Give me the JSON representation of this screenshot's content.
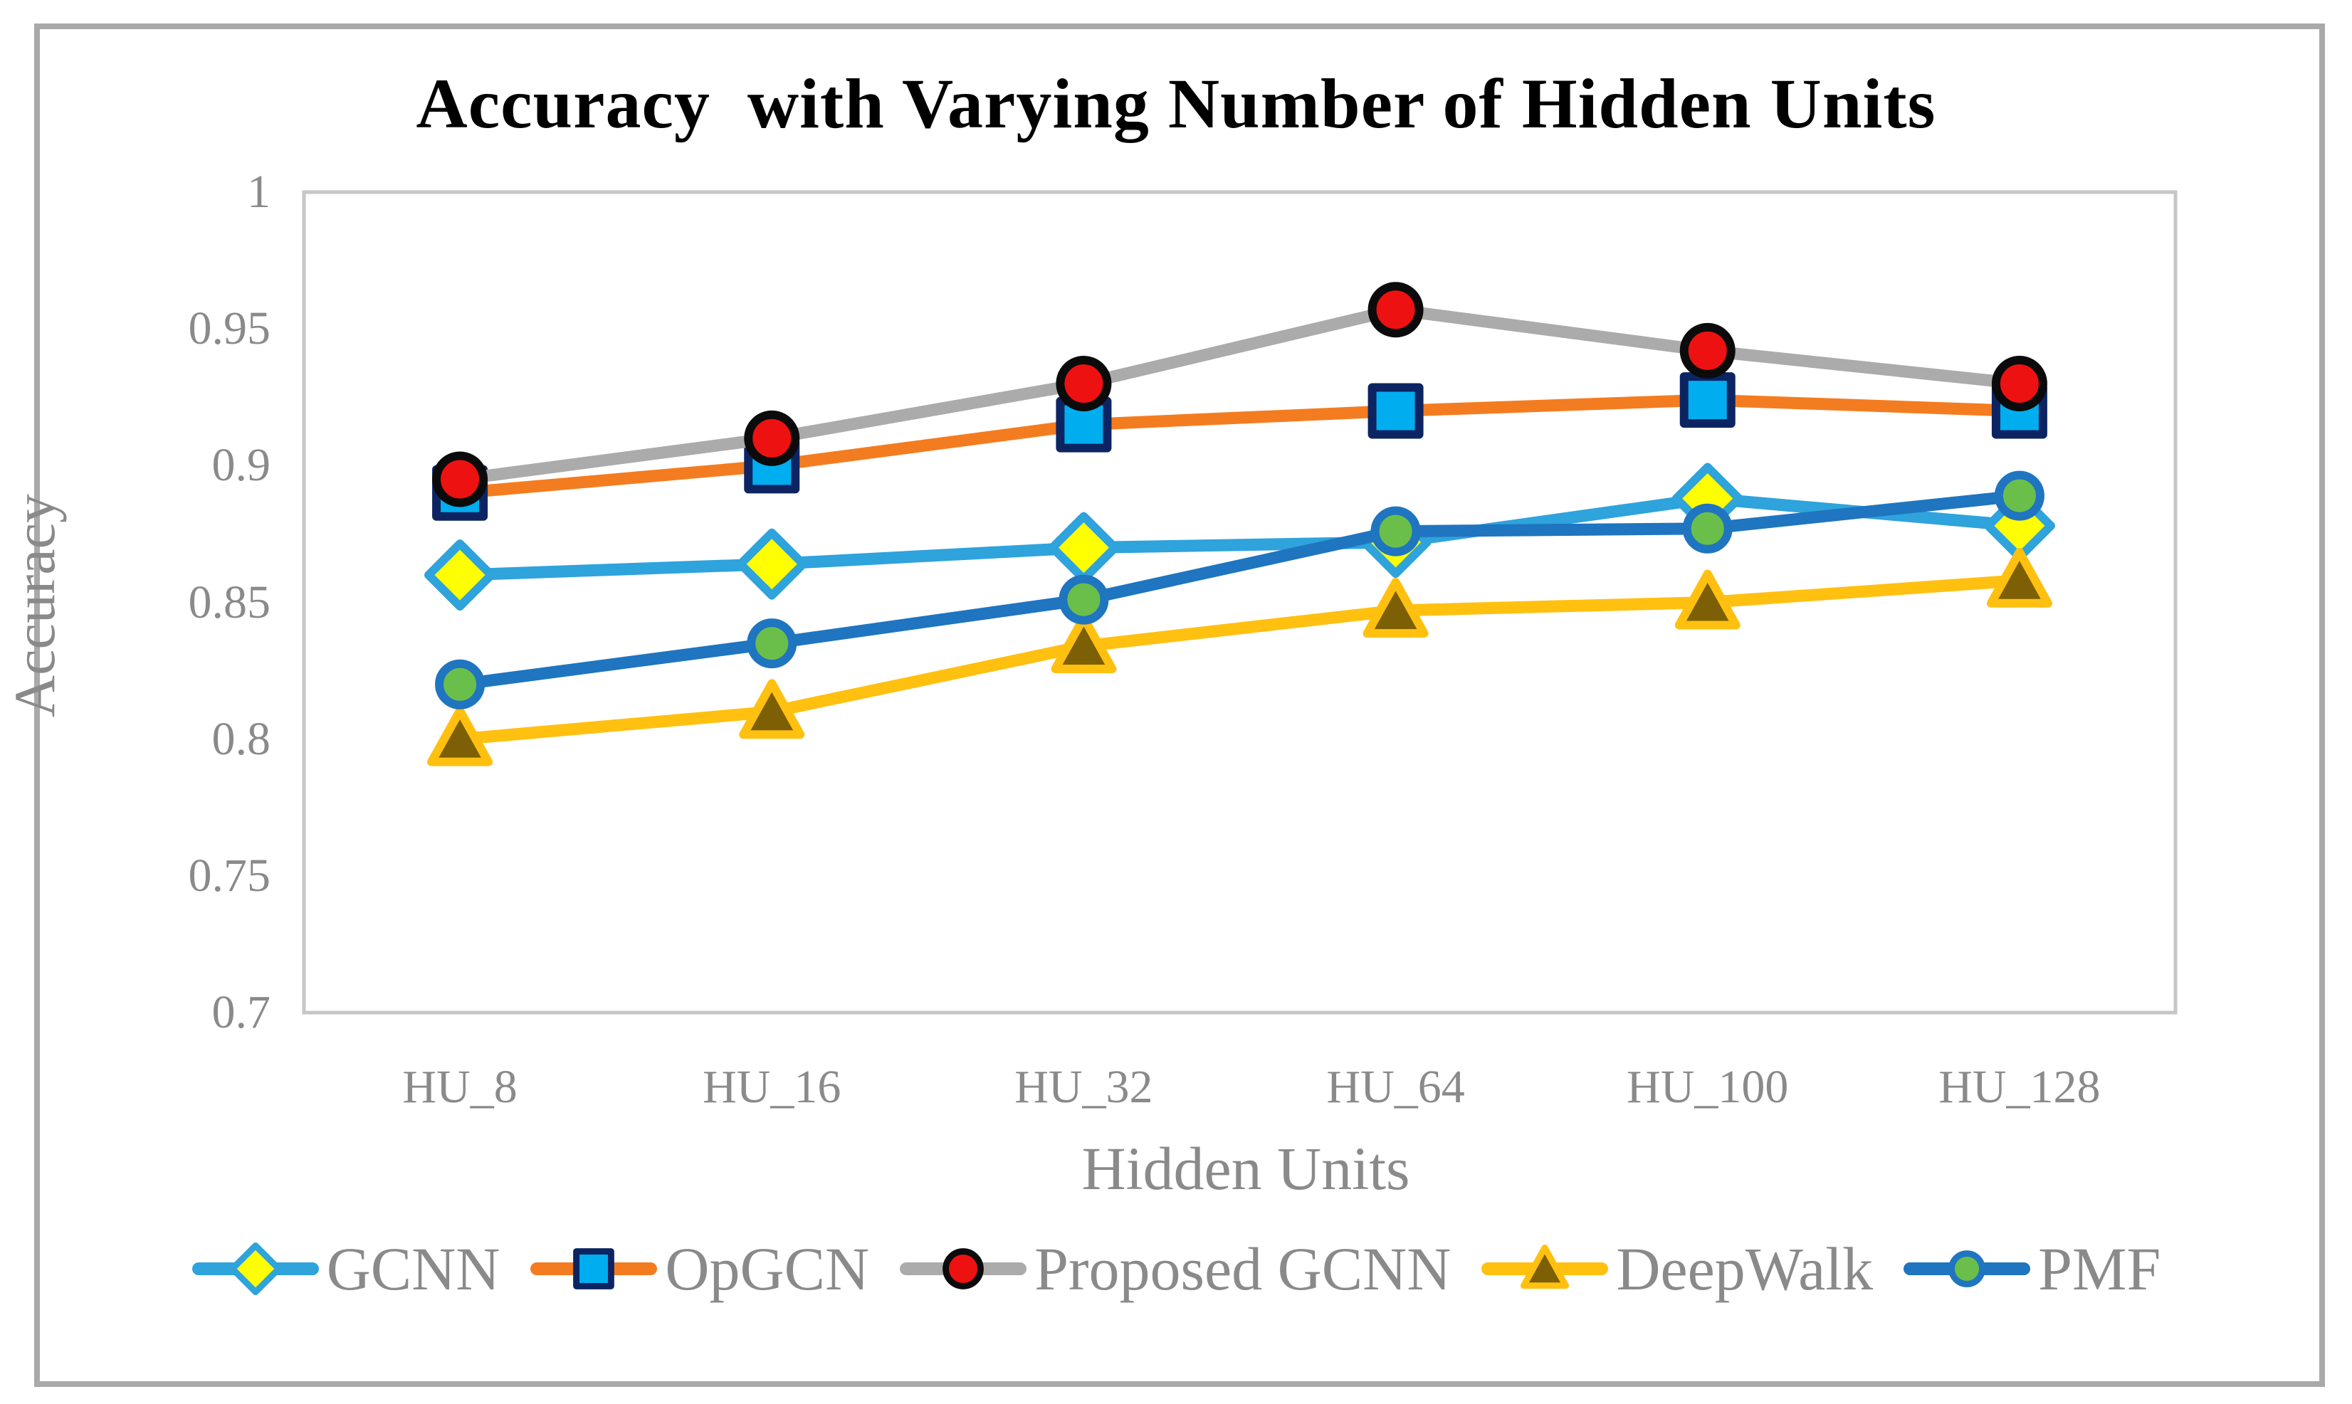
{
  "figure": {
    "title": "Accuracy  with Varying Number of Hidden Units"
  },
  "chart_data": {
    "type": "line",
    "title": "Accuracy  with Varying Number of Hidden Units",
    "xlabel": "Hidden Units",
    "ylabel": "Accuracy",
    "categories": [
      "HU_8",
      "HU_16",
      "HU_32",
      "HU_64",
      "HU_100",
      "HU_128"
    ],
    "y_ticks": [
      "1",
      "0.95",
      "0.9",
      "0.85",
      "0.8",
      "0.75",
      "0.7"
    ],
    "ylim": [
      0.7,
      1.0
    ],
    "y_step": 0.05,
    "grid": false,
    "legend_position": "bottom",
    "series": [
      {
        "name": "GCNN",
        "marker": "diamond",
        "line_color": "#2EA3DC",
        "marker_fill": "#FFFF00",
        "marker_border": "#2EA3DC",
        "values": [
          0.86,
          0.864,
          0.87,
          0.872,
          0.888,
          0.878
        ]
      },
      {
        "name": "OpGCN",
        "marker": "square",
        "line_color": "#F47C20",
        "marker_fill": "#00AEEF",
        "marker_border": "#0D2463",
        "values": [
          0.89,
          0.9,
          0.915,
          0.92,
          0.924,
          0.92
        ]
      },
      {
        "name": "Proposed GCNN",
        "marker": "circle",
        "line_color": "#ABABAB",
        "marker_fill": "#EE1111",
        "marker_border": "#0B0B0B",
        "values": [
          0.895,
          0.91,
          0.93,
          0.957,
          0.942,
          0.93
        ]
      },
      {
        "name": "DeepWalk",
        "marker": "triangle",
        "line_color": "#FFC010",
        "marker_fill": "#7D5F05",
        "marker_border": "#FFC010",
        "values": [
          0.8,
          0.81,
          0.834,
          0.847,
          0.85,
          0.858
        ]
      },
      {
        "name": "PMF",
        "marker": "circle2",
        "line_color": "#1F75C0",
        "marker_fill": "#6ABF4B",
        "marker_border": "#1F75C0",
        "values": [
          0.82,
          0.835,
          0.851,
          0.876,
          0.877,
          0.889
        ]
      }
    ],
    "colors": {
      "axis_text": "#8a8a8a",
      "title_text": "#000000",
      "plot_border": "#c6c6c6",
      "frame_border": "#a9a9a9"
    }
  }
}
